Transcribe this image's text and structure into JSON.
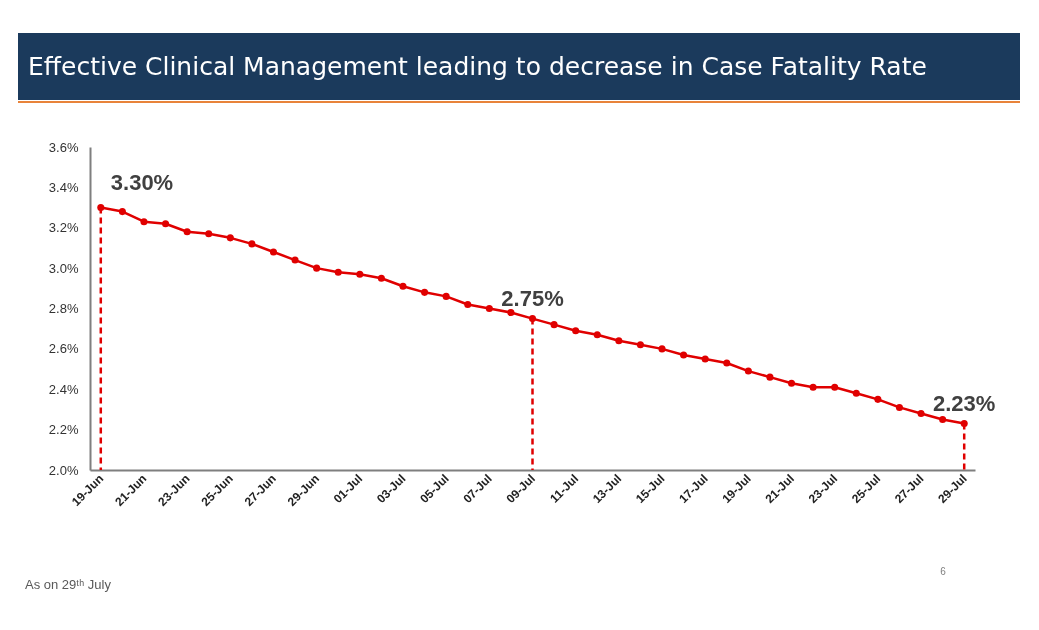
{
  "chart_data": {
    "type": "line",
    "title": "Effective Clinical Management leading to decrease in Case Fatality Rate",
    "categories": [
      "19-Jun",
      null,
      "21-Jun",
      null,
      "23-Jun",
      null,
      "25-Jun",
      null,
      "27-Jun",
      null,
      "29-Jun",
      null,
      "01-Jul",
      null,
      "03-Jul",
      null,
      "05-Jul",
      null,
      "07-Jul",
      null,
      "09-Jul",
      null,
      "11-Jul",
      null,
      "13-Jul",
      null,
      "15-Jul",
      null,
      "17-Jul",
      null,
      "19-Jul",
      null,
      "21-Jul",
      null,
      "23-Jul",
      null,
      "25-Jul",
      null,
      "27-Jul",
      null,
      "29-Jul"
    ],
    "series": [
      {
        "color": "#e00000",
        "values": [
          3.3,
          3.28,
          3.23,
          3.22,
          3.18,
          3.17,
          3.15,
          3.12,
          3.08,
          3.04,
          3.0,
          2.98,
          2.97,
          2.95,
          2.91,
          2.88,
          2.86,
          2.82,
          2.8,
          2.78,
          2.75,
          2.72,
          2.69,
          2.67,
          2.64,
          2.62,
          2.6,
          2.57,
          2.55,
          2.53,
          2.49,
          2.46,
          2.43,
          2.41,
          2.41,
          2.38,
          2.35,
          2.31,
          2.28,
          2.25,
          2.23
        ],
        "value_labels": [
          "3.30%",
          null,
          null,
          null,
          null,
          null,
          null,
          null,
          null,
          null,
          null,
          null,
          null,
          null,
          null,
          null,
          null,
          null,
          null,
          null,
          "2.75%",
          null,
          null,
          null,
          null,
          null,
          null,
          null,
          null,
          null,
          null,
          null,
          null,
          null,
          null,
          null,
          null,
          null,
          null,
          null,
          "2.23%"
        ]
      }
    ],
    "ylim": [
      2.0,
      3.6
    ],
    "yticks": [
      {
        "value": 2.0,
        "label": "2.0%"
      },
      {
        "value": 2.2,
        "label": "2.2%"
      },
      {
        "value": 2.4,
        "label": "2.4%"
      },
      {
        "value": 2.6,
        "label": "2.6%"
      },
      {
        "value": 2.8,
        "label": "2.8%"
      },
      {
        "value": 3.0,
        "label": "3.0%"
      },
      {
        "value": 3.2,
        "label": "3.2%"
      },
      {
        "value": 3.4,
        "label": "3.4%"
      },
      {
        "value": 3.6,
        "label": "3.6%"
      }
    ],
    "ref_lines": [
      {
        "axis": "x",
        "value": "19-Jun",
        "color": "#e00000",
        "line_style": "dashed"
      },
      {
        "axis": "x",
        "value": "09-Jul",
        "color": "#e00000",
        "line_style": "dashed"
      },
      {
        "axis": "x",
        "value": "29-Jul",
        "color": "#e00000",
        "line_style": "dashed"
      }
    ],
    "marker": "circle",
    "line_style": "solid",
    "grid": false,
    "annotations": [
      "As on 29ᵗʰ July",
      "6"
    ]
  }
}
